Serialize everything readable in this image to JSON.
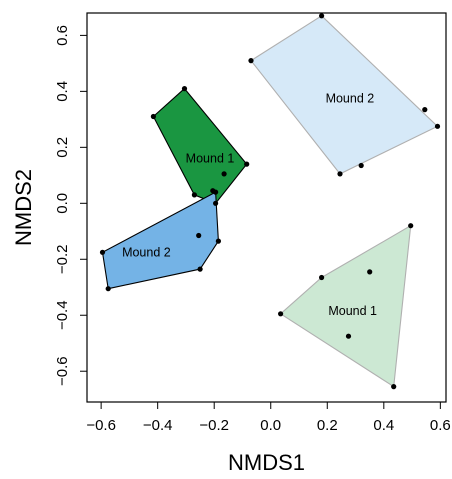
{
  "chart_data": {
    "type": "scatter",
    "title": "",
    "xlabel": "NMDS1",
    "ylabel": "NMDS2",
    "xlim": [
      -0.65,
      0.62
    ],
    "ylim": [
      -0.71,
      0.68
    ],
    "x_ticks": [
      -0.6,
      -0.4,
      -0.2,
      0.0,
      0.2,
      0.4,
      0.6
    ],
    "x_tick_labels": [
      "−0.6",
      "−0.4",
      "−0.2",
      "0.0",
      "0.2",
      "0.4",
      "0.6"
    ],
    "y_ticks": [
      -0.6,
      -0.4,
      -0.2,
      0.0,
      0.2,
      0.4,
      0.6
    ],
    "y_tick_labels": [
      "−0.6",
      "−0.4",
      "−0.2",
      "0.0",
      "0.2",
      "0.4",
      "0.6"
    ],
    "grid": false,
    "series": [
      {
        "label": "Mound 1",
        "label_at": [
          -0.215,
          0.16
        ],
        "fill": "#1a9641",
        "stroke": "#000000",
        "hull": [
          [
            -0.305,
            0.41
          ],
          [
            -0.085,
            0.14
          ],
          [
            -0.195,
            0.0
          ],
          [
            -0.27,
            0.03
          ],
          [
            -0.415,
            0.31
          ]
        ],
        "points": [
          [
            -0.305,
            0.41
          ],
          [
            -0.415,
            0.31
          ],
          [
            -0.085,
            0.14
          ],
          [
            -0.165,
            0.105
          ],
          [
            -0.205,
            0.045
          ],
          [
            -0.27,
            0.03
          ],
          [
            -0.195,
            0.0
          ]
        ]
      },
      {
        "label": "Mound 2",
        "label_at": [
          -0.44,
          -0.175
        ],
        "fill": "#74b3e6",
        "stroke": "#000000",
        "hull": [
          [
            -0.195,
            0.04
          ],
          [
            -0.185,
            -0.135
          ],
          [
            -0.25,
            -0.235
          ],
          [
            -0.575,
            -0.305
          ],
          [
            -0.595,
            -0.175
          ]
        ],
        "points": [
          [
            -0.195,
            0.04
          ],
          [
            -0.255,
            -0.115
          ],
          [
            -0.185,
            -0.135
          ],
          [
            -0.25,
            -0.235
          ],
          [
            -0.595,
            -0.175
          ],
          [
            -0.575,
            -0.305
          ]
        ]
      },
      {
        "label": "Mound 2",
        "label_at": [
          0.28,
          0.375
        ],
        "fill": "#d6e9f8",
        "stroke": "#b0b0b0",
        "hull": [
          [
            0.18,
            0.67
          ],
          [
            0.59,
            0.275
          ],
          [
            0.245,
            0.105
          ],
          [
            -0.07,
            0.51
          ]
        ],
        "points": [
          [
            0.18,
            0.67
          ],
          [
            -0.07,
            0.51
          ],
          [
            0.545,
            0.335
          ],
          [
            0.59,
            0.275
          ],
          [
            0.32,
            0.135
          ],
          [
            0.245,
            0.105
          ]
        ]
      },
      {
        "label": "Mound 1",
        "label_at": [
          0.29,
          -0.385
        ],
        "fill": "#cce8d3",
        "stroke": "#b0b0b0",
        "hull": [
          [
            0.495,
            -0.08
          ],
          [
            0.435,
            -0.655
          ],
          [
            0.035,
            -0.395
          ],
          [
            0.18,
            -0.265
          ]
        ],
        "points": [
          [
            0.495,
            -0.08
          ],
          [
            0.35,
            -0.245
          ],
          [
            0.18,
            -0.265
          ],
          [
            0.035,
            -0.395
          ],
          [
            0.275,
            -0.475
          ],
          [
            0.435,
            -0.655
          ]
        ]
      }
    ]
  }
}
